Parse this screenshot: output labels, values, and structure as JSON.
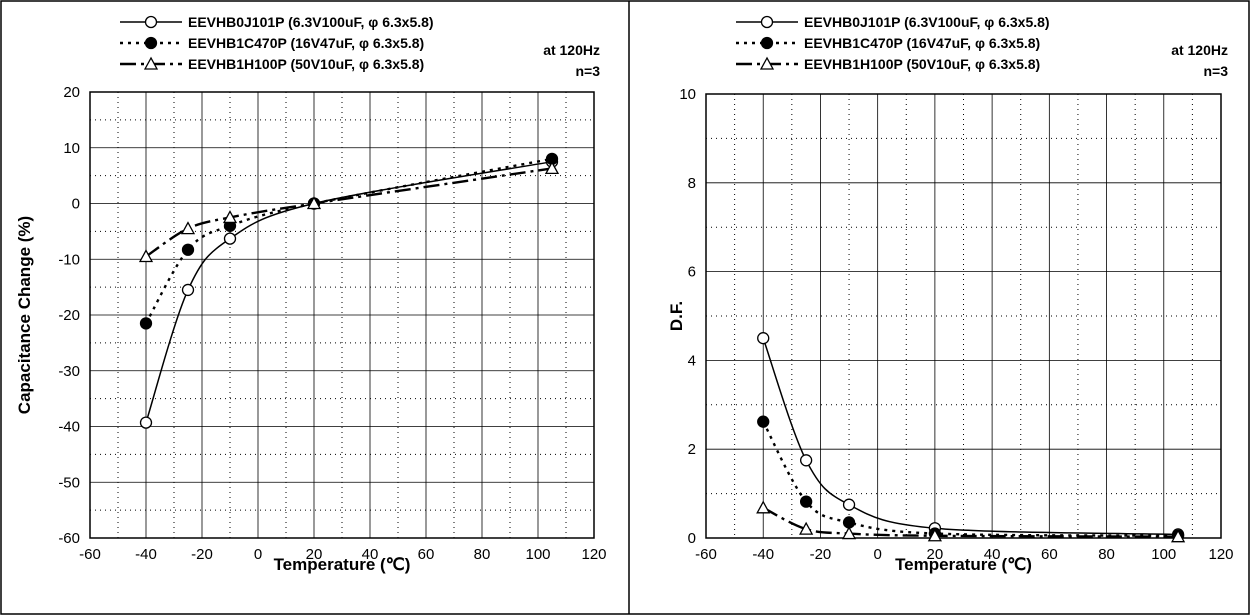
{
  "chart_data": [
    {
      "type": "line",
      "xlabel": "Temperature (℃)",
      "ylabel": "Capacitance Change (%)",
      "xlim": [
        -60,
        120
      ],
      "ylim": [
        -60,
        20
      ],
      "xticks": [
        -60,
        -40,
        -20,
        0,
        20,
        40,
        60,
        80,
        100,
        120
      ],
      "yticks": [
        -60,
        -50,
        -40,
        -30,
        -20,
        -10,
        0,
        10,
        20
      ],
      "grid": "on",
      "legend_position": "top",
      "annotations": [
        "at 120Hz",
        "n=3"
      ],
      "series": [
        {
          "name": "EEVHB0J101P (6.3V100uF, φ 6.3x5.8)",
          "marker": "open-circle",
          "line": "solid",
          "x": [
            -40,
            -25,
            -10,
            20,
            105
          ],
          "y": [
            -39.3,
            -15.5,
            -6.3,
            0,
            7.5
          ]
        },
        {
          "name": "EEVHB1C470P (16V47uF, φ 6.3x5.8)",
          "marker": "filled-circle",
          "line": "dotted",
          "x": [
            -40,
            -25,
            -10,
            20,
            105
          ],
          "y": [
            -21.5,
            -8.3,
            -4.0,
            0,
            8.0
          ]
        },
        {
          "name": "EEVHB1H100P (50V10uF, φ 6.3x5.8)",
          "marker": "open-triangle",
          "line": "dash-dot",
          "x": [
            -40,
            -25,
            -10,
            20,
            105
          ],
          "y": [
            -9.5,
            -4.5,
            -2.5,
            0,
            6.3
          ]
        }
      ]
    },
    {
      "type": "line",
      "xlabel": "Temperature (℃)",
      "ylabel": "D.F.",
      "xlim": [
        -60,
        120
      ],
      "ylim": [
        0,
        10
      ],
      "xticks": [
        -60,
        -40,
        -20,
        0,
        20,
        40,
        60,
        80,
        100,
        120
      ],
      "yticks": [
        0,
        2,
        4,
        6,
        8,
        10
      ],
      "grid": "on",
      "legend_position": "top",
      "annotations": [
        "at 120Hz",
        "n=3"
      ],
      "series": [
        {
          "name": "EEVHB0J101P (6.3V100uF, φ 6.3x5.8)",
          "marker": "open-circle",
          "line": "solid",
          "x": [
            -40,
            -25,
            -10,
            20,
            105
          ],
          "y": [
            4.5,
            1.75,
            0.75,
            0.22,
            0.08
          ]
        },
        {
          "name": "EEVHB1C470P (16V47uF, φ 6.3x5.8)",
          "marker": "filled-circle",
          "line": "dotted",
          "x": [
            -40,
            -25,
            -10,
            20,
            105
          ],
          "y": [
            2.62,
            0.82,
            0.35,
            0.1,
            0.05
          ]
        },
        {
          "name": "EEVHB1H100P (50V10uF, φ 6.3x5.8)",
          "marker": "open-triangle",
          "line": "dash-dot",
          "x": [
            -40,
            -25,
            -10,
            20,
            105
          ],
          "y": [
            0.68,
            0.2,
            0.1,
            0.05,
            0.03
          ]
        }
      ]
    }
  ]
}
